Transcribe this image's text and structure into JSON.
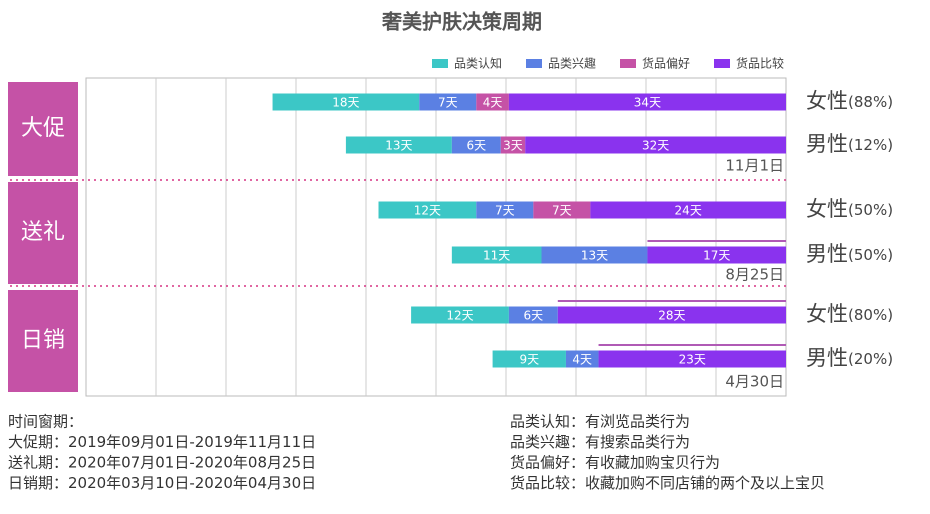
{
  "chart_data": {
    "type": "bar",
    "orientation": "horizontal",
    "stacked": true,
    "title": "奢美护肤决策周期",
    "categories": [
      "女性",
      "男性",
      "女性",
      "男性",
      "女性",
      "男性"
    ],
    "shares": [
      88,
      12,
      50,
      50,
      80,
      20
    ],
    "share_labels": [
      "(88%)",
      "(12%)",
      "(50%)",
      "(50%)",
      "(80%)",
      "(20%)"
    ],
    "underline": [
      false,
      false,
      false,
      true,
      true,
      true
    ],
    "groups": [
      {
        "name": "大促",
        "date": "11月1日"
      },
      {
        "name": "送礼",
        "date": "8月25日"
      },
      {
        "name": "日销",
        "date": "4月30日"
      }
    ],
    "series": [
      {
        "name": "品类认知",
        "color": "#3cc7c6",
        "values": [
          18,
          13,
          12,
          11,
          12,
          9
        ],
        "value_labels": [
          "18天",
          "13天",
          "12天",
          "11天",
          "12天",
          "9天"
        ]
      },
      {
        "name": "品类兴趣",
        "color": "#5b80e3",
        "values": [
          7,
          6,
          7,
          13,
          6,
          4
        ],
        "value_labels": [
          "7天",
          "6天",
          "7天",
          "13天",
          "6天",
          "4天"
        ]
      },
      {
        "name": "货品偏好",
        "color": "#c552a6",
        "values": [
          4,
          3,
          7,
          null,
          null,
          null
        ],
        "value_labels": [
          "4天",
          "3天",
          "7天",
          null,
          null,
          null
        ]
      },
      {
        "name": "货品比较",
        "color": "#8a33ee",
        "values": [
          34,
          32,
          24,
          17,
          28,
          23
        ],
        "value_labels": [
          "34天",
          "32天",
          "24天",
          "17天",
          "28天",
          "23天"
        ]
      }
    ],
    "notes_left": [
      "时间窗期：",
      "大促期：2019年09月01日-2019年11月11日",
      "送礼期：2020年07月01日-2020年08月25日",
      "日销期：2020年03月10日-2020年04月30日"
    ],
    "notes_right": [
      "品类认知：有浏览品类行为",
      "品类兴趣：有搜索品类行为",
      "货品偏好：有收藏加购宝贝行为",
      "货品比较：收藏加购不同店铺的两个及以上宝贝"
    ]
  }
}
